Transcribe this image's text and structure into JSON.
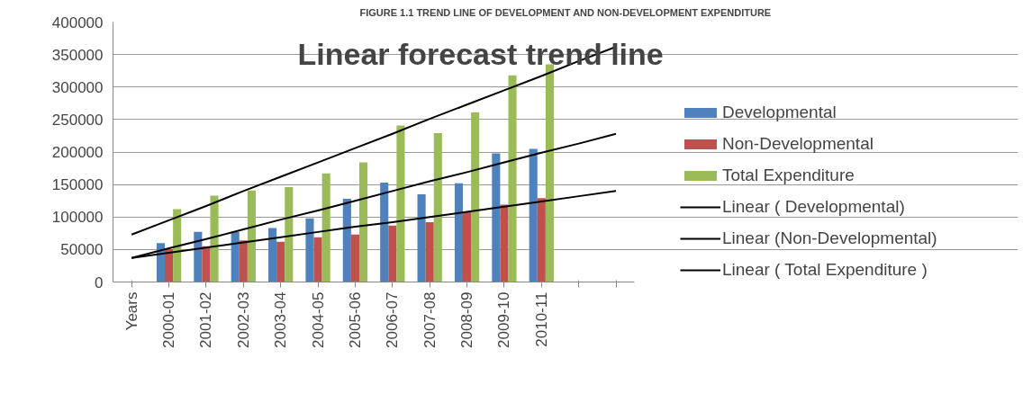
{
  "chart_data": {
    "type": "bar",
    "title": "FIGURE 1.1 TREND LINE OF DEVELOPMENT AND NON-DEVELOPMENT EXPENDITURE",
    "annotations": [
      "Linear forecast trend line"
    ],
    "categories": [
      "Years",
      "2000-01",
      "2001-02",
      "2002-03",
      "2003-04",
      "2004-05",
      "2005-06",
      "2006-07",
      "2007-08",
      "2008-09",
      "2009-10",
      "2010-11",
      null,
      null
    ],
    "series": [
      {
        "name": "Developmental",
        "color": "#4f81bd",
        "values": [
          null,
          60000,
          77000,
          77000,
          83000,
          98000,
          128000,
          153000,
          135000,
          152000,
          198000,
          205000,
          null,
          null
        ]
      },
      {
        "name": "Non-Developmental",
        "color": "#c0504d",
        "values": [
          null,
          51000,
          55000,
          64000,
          62000,
          69000,
          73000,
          87000,
          92000,
          108000,
          119000,
          129000,
          null,
          null
        ]
      },
      {
        "name": "Total Expenditure",
        "color": "#9bbb59",
        "values": [
          null,
          112000,
          133000,
          141000,
          146000,
          167000,
          184000,
          241000,
          229000,
          261000,
          318000,
          335000,
          null,
          null
        ]
      },
      {
        "name": "Linear ( Developmental)",
        "type": "line",
        "color": "#000000",
        "values": [
          37000,
          52000,
          66000,
          81000,
          96000,
          110000,
          125000,
          140000,
          155000,
          169000,
          184000,
          199000,
          213000,
          228000
        ]
      },
      {
        "name": "Linear (Non-Developmental)",
        "type": "line",
        "color": "#000000",
        "values": [
          37000,
          45000,
          53000,
          61000,
          69000,
          77000,
          85000,
          92000,
          100000,
          108000,
          116000,
          124000,
          132000,
          140000
        ]
      },
      {
        "name": "Linear ( Total Expenditure )",
        "type": "line",
        "color": "#000000",
        "values": [
          73000,
          95000,
          117000,
          140000,
          162000,
          184000,
          206000,
          228000,
          251000,
          273000,
          295000,
          317000,
          340000,
          362000
        ]
      }
    ],
    "ylim": [
      0,
      400000
    ],
    "yticks": [
      0,
      50000,
      100000,
      150000,
      200000,
      250000,
      300000,
      350000,
      400000
    ],
    "grid": "y",
    "legend": "right"
  }
}
